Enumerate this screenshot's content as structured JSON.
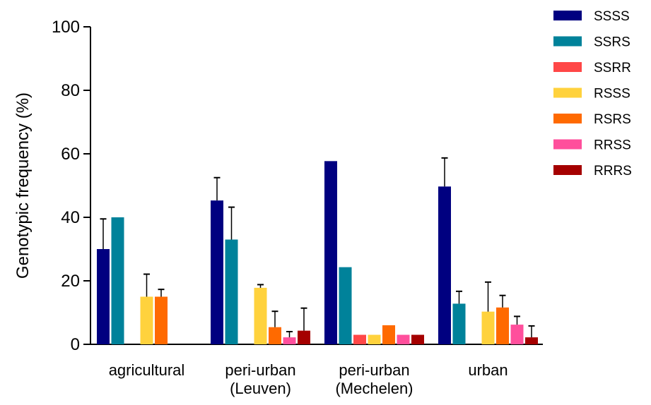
{
  "chart_data": {
    "type": "bar",
    "ylabel": "Genotypic frequency (%)",
    "xlabel": "",
    "ylim": [
      0,
      100
    ],
    "yticks": [
      0,
      20,
      40,
      60,
      80,
      100
    ],
    "grid": false,
    "legend_position": "right",
    "categories": [
      [
        "agricultural"
      ],
      [
        "peri-urban",
        "(Leuven)"
      ],
      [
        "peri-urban",
        "(Mechelen)"
      ],
      [
        "urban"
      ]
    ],
    "series": [
      {
        "name": "SSSS",
        "color": "#000080",
        "values": [
          30,
          45.3,
          57.7,
          49.7
        ],
        "errors": [
          9.5,
          7.2,
          0,
          9
        ]
      },
      {
        "name": "SSRS",
        "color": "#00829A",
        "values": [
          40,
          33,
          24.3,
          12.8
        ],
        "errors": [
          0,
          10.2,
          0,
          3.9
        ]
      },
      {
        "name": "SSRR",
        "color": "#FF4747",
        "values": [
          0,
          0,
          3,
          0
        ],
        "errors": [
          0,
          0,
          0,
          0
        ]
      },
      {
        "name": "RSSS",
        "color": "#FFD23D",
        "values": [
          15,
          17.8,
          3,
          10.3
        ],
        "errors": [
          7.1,
          1,
          0,
          9.3
        ]
      },
      {
        "name": "RSRS",
        "color": "#FF6A00",
        "values": [
          15,
          5.4,
          6,
          11.6
        ],
        "errors": [
          2.3,
          5,
          0,
          3.8
        ]
      },
      {
        "name": "RRSS",
        "color": "#FF4F9C",
        "values": [
          0,
          2.2,
          3,
          6.2
        ],
        "errors": [
          0,
          1.8,
          0,
          2.6
        ]
      },
      {
        "name": "RRRS",
        "color": "#A50000",
        "values": [
          0,
          4.3,
          3,
          2.2
        ],
        "errors": [
          0,
          7.1,
          0,
          3.6
        ]
      }
    ]
  }
}
